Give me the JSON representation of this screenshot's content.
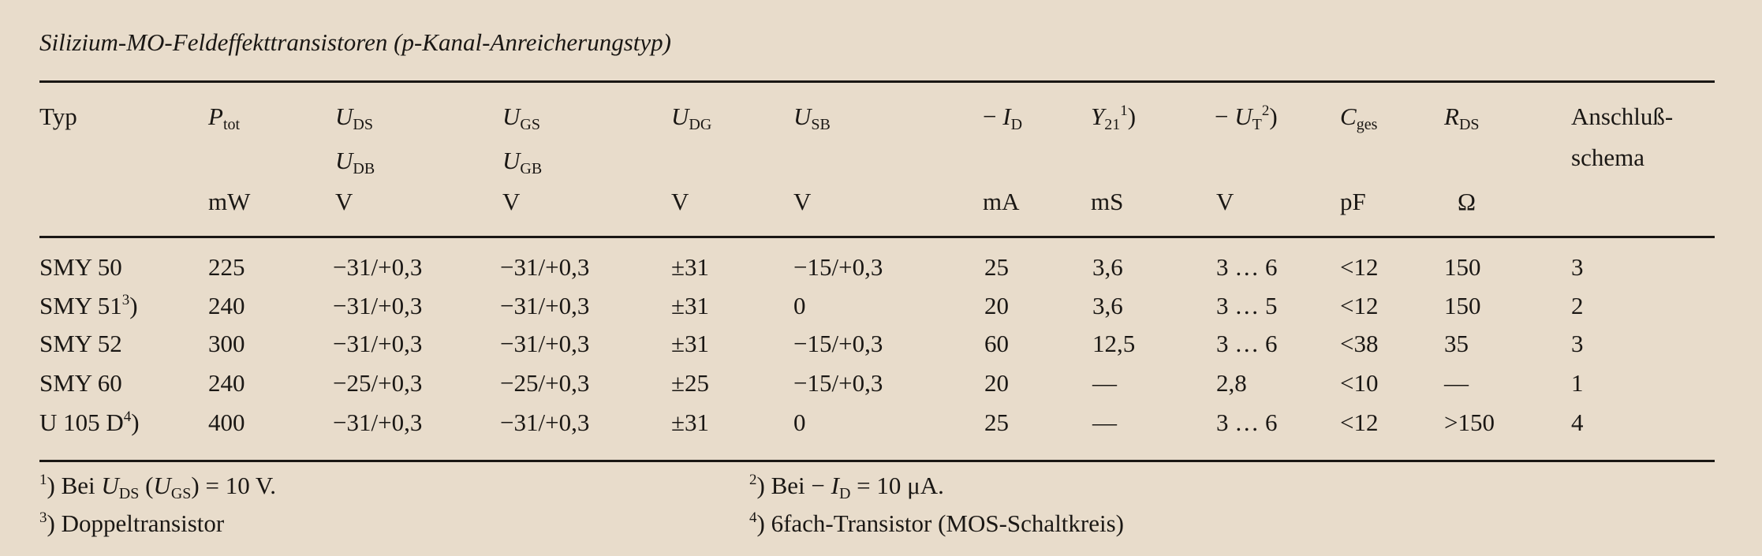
{
  "title": "Silizium-MO-Feldeffekttransistoren (p-Kanal-Anreicherungstyp)",
  "header": {
    "typ": "Typ",
    "ptot": {
      "sym": "P",
      "sub": "tot",
      "unit": "mW"
    },
    "uds": {
      "sym": "U",
      "sub": "DS",
      "sym2": "U",
      "sub2": "DB",
      "unit": "V"
    },
    "ugs": {
      "sym": "U",
      "sub": "GS",
      "sym2": "U",
      "sub2": "GB",
      "unit": "V"
    },
    "udg": {
      "sym": "U",
      "sub": "DG",
      "unit": "V"
    },
    "usb": {
      "sym": "U",
      "sub": "SB",
      "unit": "V"
    },
    "id": {
      "pre": "− ",
      "sym": "I",
      "sub": "D",
      "unit": "mA"
    },
    "y21": {
      "sym": "Y",
      "sub": "21",
      "sup": "1",
      "post": ")",
      "unit": "mS"
    },
    "ut": {
      "pre": "− ",
      "sym": "U",
      "sub": "T",
      "sup": "2",
      "post": ")",
      "unit": "V"
    },
    "cges": {
      "sym": "C",
      "sub": "ges",
      "unit": "pF"
    },
    "rds": {
      "sym": "R",
      "sub": "DS",
      "unit": "Ω"
    },
    "schema": {
      "line1": "Anschluß-",
      "line2": "schema"
    }
  },
  "rows": [
    {
      "typ": "SMY 50",
      "typ_sup": "",
      "post": "",
      "ptot": "225",
      "uds": "−31/+0,3",
      "ugs": "−31/+0,3",
      "udg": "±31",
      "usb": "−15/+0,3",
      "id": "25",
      "y21": "3,6",
      "ut": "3 … 6",
      "cges": "<12",
      "rds": "150",
      "schema": "3"
    },
    {
      "typ": "SMY 51",
      "typ_sup": "3",
      "post": ")",
      "ptot": "240",
      "uds": "−31/+0,3",
      "ugs": "−31/+0,3",
      "udg": "±31",
      "usb": "0",
      "id": "20",
      "y21": "3,6",
      "ut": "3 … 5",
      "cges": "<12",
      "rds": "150",
      "schema": "2"
    },
    {
      "typ": "SMY 52",
      "typ_sup": "",
      "post": "",
      "ptot": "300",
      "uds": "−31/+0,3",
      "ugs": "−31/+0,3",
      "udg": "±31",
      "usb": "−15/+0,3",
      "id": "60",
      "y21": "12,5",
      "ut": "3 … 6",
      "cges": "<38",
      "rds": "35",
      "schema": "3"
    },
    {
      "typ": "SMY 60",
      "typ_sup": "",
      "post": "",
      "ptot": "240",
      "uds": "−25/+0,3",
      "ugs": "−25/+0,3",
      "udg": "±25",
      "usb": "−15/+0,3",
      "id": "20",
      "y21": "—",
      "ut": "2,8",
      "cges": "<10",
      "rds": "—",
      "schema": "1"
    },
    {
      "typ": "U 105 D",
      "typ_sup": "4",
      "post": ")",
      "ptot": "400",
      "uds": "−31/+0,3",
      "ugs": "−31/+0,3",
      "udg": "±31",
      "usb": "0",
      "id": "25",
      "y21": "—",
      "ut": "3 … 6",
      "cges": "<12",
      "rds": ">150",
      "schema": "4"
    }
  ],
  "footnotes": {
    "f1": {
      "mark": "1",
      "text_a": ") Bei ",
      "sym": "U",
      "sub": "DS",
      "mid": " (",
      "sym2": "U",
      "sub2": "GS",
      "text_b": ") = 10 V."
    },
    "f2": {
      "mark": "2",
      "text_a": ") Bei − ",
      "sym": "I",
      "sub": "D",
      "text_b": " = 10 μA."
    },
    "f3": {
      "mark": "3",
      "text": ") Doppeltransistor"
    },
    "f4": {
      "mark": "4",
      "text": ") 6fach-Transistor (MOS-Schaltkreis)"
    }
  }
}
